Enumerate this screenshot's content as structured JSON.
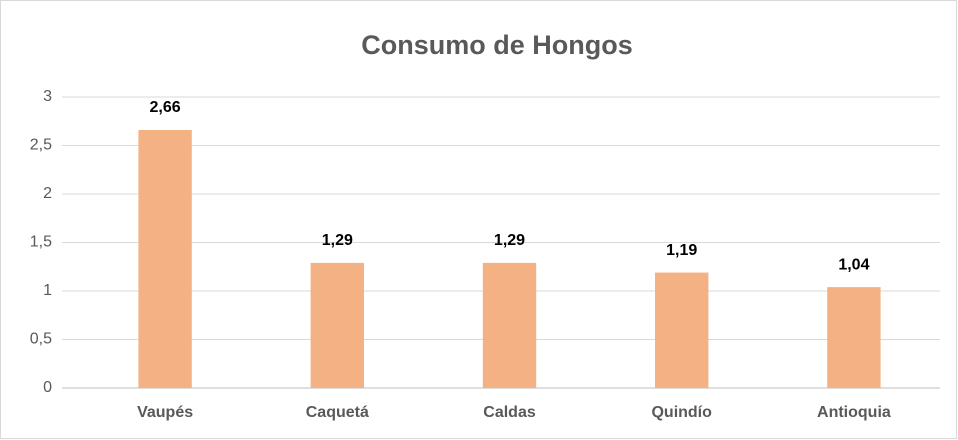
{
  "chart_data": {
    "type": "bar",
    "title": "Consumo de Hongos",
    "categories": [
      "Vaupés",
      "Caquetá",
      "Caldas",
      "Quindío",
      "Antioquia"
    ],
    "values": [
      2.66,
      1.29,
      1.29,
      1.19,
      1.04
    ],
    "value_labels": [
      "2,66",
      "1,29",
      "1,29",
      "1,19",
      "1,04"
    ],
    "color": "#f4b183",
    "ylim": [
      0,
      3
    ],
    "yticks": [
      0,
      {
        "value": 0.5,
        "label": "0,5"
      },
      1,
      {
        "value": 1.5,
        "label": "1,5"
      },
      2,
      {
        "value": 2.5,
        "label": "2,5"
      },
      3
    ],
    "grid": true
  }
}
